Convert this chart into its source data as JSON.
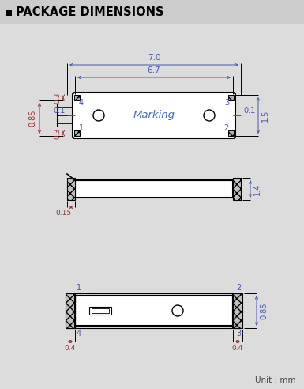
{
  "title": "PACKAGE DIMENSIONS",
  "bg_color": "#dcdcdc",
  "inner_bg": "#ffffff",
  "line_color": "#000000",
  "dim_color_blue": "#4455bb",
  "dim_color_red": "#993333",
  "marking_color": "#4466cc",
  "unit_text": "Unit : mm",
  "header_color": "#cccccc"
}
